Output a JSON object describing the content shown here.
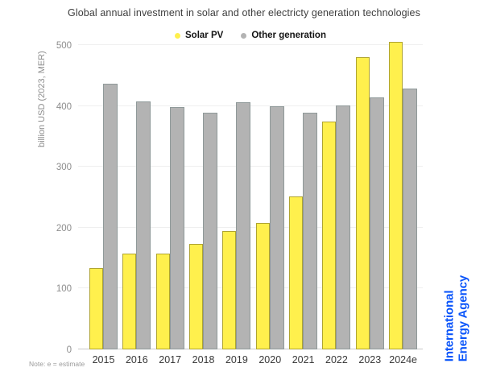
{
  "title": "Global annual investment in solar and other electricty generation technologies",
  "note": "Note: e = estimate",
  "branding": {
    "line1": "International",
    "line2": "Energy Agency",
    "color": "#0a55fa"
  },
  "y_axis": {
    "title": "billion USD (2023, MER)",
    "ticks": [
      0,
      100,
      200,
      300,
      400,
      500
    ]
  },
  "chart_data": {
    "type": "bar",
    "title": "Global annual investment in solar and other electricty generation technologies",
    "categories": [
      "2015",
      "2016",
      "2017",
      "2018",
      "2019",
      "2020",
      "2021",
      "2022",
      "2023",
      "2024e"
    ],
    "series": [
      {
        "name": "Solar PV",
        "color": "#fff04d",
        "border_color": "#b0a430",
        "values": [
          133,
          158,
          158,
          173,
          195,
          208,
          252,
          374,
          480,
          505
        ]
      },
      {
        "name": "Other generation",
        "color": "#b3b3b3",
        "border_color": "#8f9999",
        "values": [
          437,
          407,
          398,
          389,
          406,
          400,
          389,
          401,
          414,
          428
        ]
      }
    ],
    "xlabel": "",
    "ylabel": "billion USD (2023, MER)",
    "ylim": [
      0,
      500
    ],
    "grid": true,
    "legend_position": "top"
  }
}
